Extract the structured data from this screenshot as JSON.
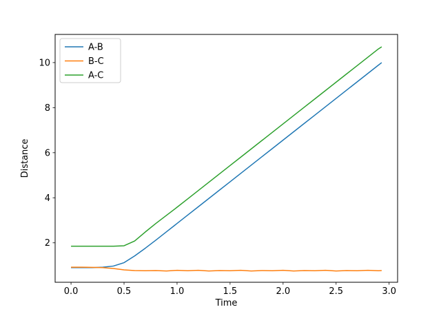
{
  "chart_data": {
    "type": "line",
    "title": "",
    "xlabel": "Time",
    "ylabel": "Distance",
    "xlim": [
      -0.15,
      3.08
    ],
    "ylim": [
      0.25,
      11.25
    ],
    "xticks": [
      0.0,
      0.5,
      1.0,
      1.5,
      2.0,
      2.5,
      3.0
    ],
    "xtick_labels": [
      "0.0",
      "0.5",
      "1.0",
      "1.5",
      "2.0",
      "2.5",
      "3.0"
    ],
    "yticks": [
      2,
      4,
      6,
      8,
      10
    ],
    "ytick_labels": [
      "2",
      "4",
      "6",
      "8",
      "10"
    ],
    "grid": false,
    "legend_position": "upper-left",
    "x": [
      0.0,
      0.1,
      0.2,
      0.3,
      0.4,
      0.5,
      0.6,
      0.7,
      0.8,
      0.9,
      1.0,
      1.1,
      1.2,
      1.3,
      1.4,
      1.5,
      1.6,
      1.7,
      1.8,
      1.9,
      2.0,
      2.1,
      2.2,
      2.3,
      2.4,
      2.5,
      2.6,
      2.7,
      2.8,
      2.9,
      2.93
    ],
    "series": [
      {
        "name": "A-B",
        "color": "#1f77b4",
        "values": [
          0.9,
          0.9,
          0.9,
          0.92,
          0.97,
          1.12,
          1.42,
          1.76,
          2.12,
          2.49,
          2.86,
          3.23,
          3.6,
          3.97,
          4.34,
          4.71,
          5.08,
          5.45,
          5.82,
          6.19,
          6.56,
          6.93,
          7.3,
          7.67,
          8.04,
          8.41,
          8.78,
          9.15,
          9.52,
          9.89,
          10.0
        ]
      },
      {
        "name": "B-C",
        "color": "#ff7f0e",
        "values": [
          0.92,
          0.92,
          0.91,
          0.9,
          0.86,
          0.8,
          0.77,
          0.76,
          0.77,
          0.75,
          0.78,
          0.76,
          0.78,
          0.75,
          0.77,
          0.76,
          0.78,
          0.75,
          0.77,
          0.76,
          0.78,
          0.75,
          0.77,
          0.76,
          0.78,
          0.75,
          0.77,
          0.76,
          0.78,
          0.76,
          0.77
        ]
      },
      {
        "name": "A-C",
        "color": "#2ca02c",
        "values": [
          1.85,
          1.85,
          1.85,
          1.85,
          1.85,
          1.87,
          2.08,
          2.48,
          2.86,
          3.22,
          3.58,
          3.95,
          4.32,
          4.69,
          5.06,
          5.43,
          5.8,
          6.17,
          6.54,
          6.91,
          7.28,
          7.65,
          8.02,
          8.39,
          8.76,
          9.13,
          9.5,
          9.87,
          10.24,
          10.61,
          10.7
        ]
      }
    ],
    "axis_color": "#000000",
    "background_color": "#ffffff",
    "legend_border_color": "#cccccc"
  }
}
